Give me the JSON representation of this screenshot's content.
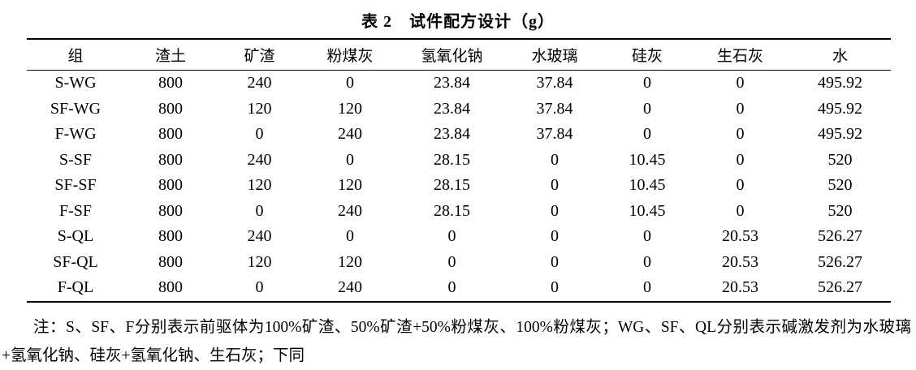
{
  "title": "表 2　试件配方设计（g）",
  "table": {
    "headers": [
      "组",
      "渣土",
      "矿渣",
      "粉煤灰",
      "氢氧化钠",
      "水玻璃",
      "硅灰",
      "生石灰",
      "水"
    ],
    "rows": [
      [
        "S-WG",
        "800",
        "240",
        "0",
        "23.84",
        "37.84",
        "0",
        "0",
        "495.92"
      ],
      [
        "SF-WG",
        "800",
        "120",
        "120",
        "23.84",
        "37.84",
        "0",
        "0",
        "495.92"
      ],
      [
        "F-WG",
        "800",
        "0",
        "240",
        "23.84",
        "37.84",
        "0",
        "0",
        "495.92"
      ],
      [
        "S-SF",
        "800",
        "240",
        "0",
        "28.15",
        "0",
        "10.45",
        "0",
        "520"
      ],
      [
        "SF-SF",
        "800",
        "120",
        "120",
        "28.15",
        "0",
        "10.45",
        "0",
        "520"
      ],
      [
        "F-SF",
        "800",
        "0",
        "240",
        "28.15",
        "0",
        "10.45",
        "0",
        "520"
      ],
      [
        "S-QL",
        "800",
        "240",
        "0",
        "0",
        "0",
        "0",
        "20.53",
        "526.27"
      ],
      [
        "SF-QL",
        "800",
        "120",
        "120",
        "0",
        "0",
        "0",
        "20.53",
        "526.27"
      ],
      [
        "F-QL",
        "800",
        "0",
        "240",
        "0",
        "0",
        "0",
        "20.53",
        "526.27"
      ]
    ]
  },
  "note": "注：S、SF、F分别表示前驱体为100%矿渣、50%矿渣+50%粉煤灰、100%粉煤灰；WG、SF、QL分别表示碱激发剂为水玻璃+氢氧化钠、硅灰+氢氧化钠、生石灰；下同"
}
